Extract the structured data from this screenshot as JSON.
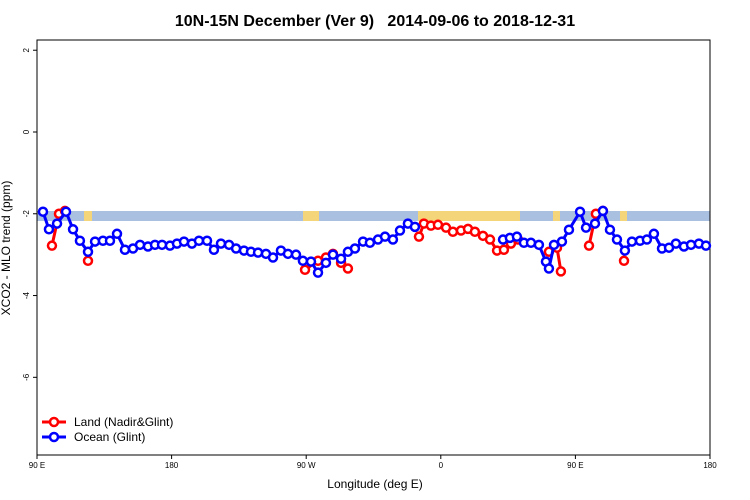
{
  "chart_data": {
    "type": "line",
    "title": "10N-15N December (Ver 9)   2014-09-06 to 2018-12-31",
    "x_label": "Longitude (deg E)",
    "y_label": "XCO2 - MLO trend (ppm)",
    "xlim": [
      90,
      540
    ],
    "ylim": [
      -7.9,
      2.25
    ],
    "xticks": [
      {
        "value": 90,
        "label": "90 E"
      },
      {
        "value": 180,
        "label": "180"
      },
      {
        "value": 270,
        "label": "90 W"
      },
      {
        "value": 360,
        "label": "0"
      },
      {
        "value": 450,
        "label": "90 E"
      },
      {
        "value": 540,
        "label": "180"
      }
    ],
    "yticks": [
      2,
      0,
      -2,
      -4,
      -6
    ],
    "legend": "bottom-left",
    "series": [
      {
        "name": "Land (Nadir&Glint)",
        "color": "#ff0000",
        "x": [
          100.0,
          104.7,
          108.7,
          null,
          124.1,
          null,
          269.2,
          277.9,
          283.2,
          287.9,
          293.3,
          297.9,
          null,
          345.4,
          348.7,
          353.4,
          358.1,
          363.5,
          368.1,
          373.5,
          378.2,
          382.8,
          388.2,
          392.9,
          397.6,
          402.2,
          406.9,
          411.6,
          null,
          432.3,
          437.7,
          440.3,
          null,
          459.1,
          463.7,
          468.4,
          null,
          482.5
        ],
        "values": [
          -2.78,
          -2.0,
          -1.93,
          null,
          -3.15,
          null,
          -3.37,
          -3.15,
          -3.07,
          -2.98,
          -3.2,
          -3.34,
          null,
          -2.56,
          -2.24,
          -2.29,
          -2.27,
          -2.34,
          -2.44,
          -2.41,
          -2.37,
          -2.44,
          -2.54,
          -2.63,
          -2.9,
          -2.88,
          -2.73,
          -2.63,
          null,
          -2.93,
          -2.83,
          -3.41,
          null,
          -2.78,
          -2.0,
          -1.93,
          null,
          -3.15
        ]
      },
      {
        "name": "Ocean (Glint)",
        "color": "#0000ff",
        "x": [
          94.0,
          98.0,
          103.4,
          109.4,
          114.1,
          118.7,
          124.1,
          128.8,
          134.1,
          138.8,
          143.5,
          148.8,
          154.2,
          158.9,
          164.2,
          168.9,
          173.6,
          178.9,
          183.6,
          188.3,
          193.6,
          198.3,
          203.7,
          208.3,
          213.0,
          218.4,
          223.1,
          228.4,
          233.1,
          237.8,
          243.1,
          247.8,
          253.1,
          257.8,
          263.2,
          267.8,
          273.2,
          277.9,
          283.2,
          287.9,
          293.3,
          297.9,
          302.6,
          308.0,
          312.6,
          318.0,
          322.7,
          328.0,
          332.7,
          338.0,
          342.7,
          null,
          401.6,
          406.2,
          410.9,
          415.6,
          420.3,
          425.6,
          430.3,
          432.3,
          435.7,
          441.0,
          445.7,
          453.1,
          457.1,
          463.1,
          468.4,
          473.1,
          477.8,
          483.1,
          487.8,
          493.2,
          497.8,
          502.5,
          507.9,
          512.6,
          517.2,
          522.6,
          527.3,
          532.6,
          537.3
        ],
        "values": [
          -1.95,
          -2.38,
          -2.24,
          -1.95,
          -2.38,
          -2.66,
          -2.93,
          -2.68,
          -2.66,
          -2.66,
          -2.49,
          -2.88,
          -2.85,
          -2.76,
          -2.8,
          -2.76,
          -2.76,
          -2.78,
          -2.73,
          -2.68,
          -2.73,
          -2.66,
          -2.66,
          -2.88,
          -2.73,
          -2.76,
          -2.85,
          -2.9,
          -2.93,
          -2.95,
          -2.98,
          -3.07,
          -2.9,
          -2.98,
          -3.0,
          -3.15,
          -3.17,
          -3.44,
          -3.2,
          -3.0,
          -3.1,
          -2.93,
          -2.85,
          -2.68,
          -2.71,
          -2.63,
          -2.56,
          -2.63,
          -2.41,
          -2.24,
          -2.32,
          null,
          -2.63,
          -2.59,
          -2.56,
          -2.71,
          -2.71,
          -2.76,
          -3.17,
          -3.34,
          -2.76,
          -2.68,
          -2.39,
          -1.95,
          -2.34,
          -2.24,
          -1.93,
          -2.39,
          -2.63,
          -2.9,
          -2.68,
          -2.66,
          -2.63,
          -2.49,
          -2.85,
          -2.83,
          -2.73,
          -2.8,
          -2.76,
          -2.73,
          -2.78
        ]
      }
    ]
  }
}
